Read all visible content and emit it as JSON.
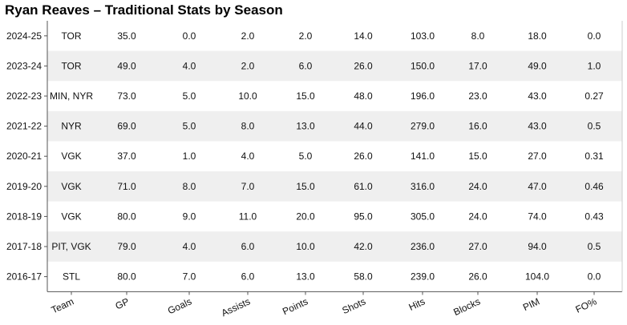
{
  "chart_data": {
    "type": "table",
    "title": "Ryan Reaves – Traditional Stats by Season",
    "columns": [
      "Team",
      "GP",
      "Goals",
      "Assists",
      "Points",
      "Shots",
      "Hits",
      "Blocks",
      "PIM",
      "FO%"
    ],
    "rows": [
      {
        "season": "2024-25",
        "values": [
          "TOR",
          "35.0",
          "0.0",
          "2.0",
          "2.0",
          "14.0",
          "103.0",
          "8.0",
          "18.0",
          "0.0"
        ]
      },
      {
        "season": "2023-24",
        "values": [
          "TOR",
          "49.0",
          "4.0",
          "2.0",
          "6.0",
          "26.0",
          "150.0",
          "17.0",
          "49.0",
          "1.0"
        ]
      },
      {
        "season": "2022-23",
        "values": [
          "MIN, NYR",
          "73.0",
          "5.0",
          "10.0",
          "15.0",
          "48.0",
          "196.0",
          "23.0",
          "43.0",
          "0.27"
        ]
      },
      {
        "season": "2021-22",
        "values": [
          "NYR",
          "69.0",
          "5.0",
          "8.0",
          "13.0",
          "44.0",
          "279.0",
          "16.0",
          "43.0",
          "0.5"
        ]
      },
      {
        "season": "2020-21",
        "values": [
          "VGK",
          "37.0",
          "1.0",
          "4.0",
          "5.0",
          "26.0",
          "141.0",
          "15.0",
          "27.0",
          "0.31"
        ]
      },
      {
        "season": "2019-20",
        "values": [
          "VGK",
          "71.0",
          "8.0",
          "7.0",
          "15.0",
          "61.0",
          "316.0",
          "24.0",
          "47.0",
          "0.46"
        ]
      },
      {
        "season": "2018-19",
        "values": [
          "VGK",
          "80.0",
          "9.0",
          "11.0",
          "20.0",
          "95.0",
          "305.0",
          "24.0",
          "74.0",
          "0.43"
        ]
      },
      {
        "season": "2017-18",
        "values": [
          "PIT, VGK",
          "79.0",
          "4.0",
          "6.0",
          "10.0",
          "42.0",
          "236.0",
          "27.0",
          "94.0",
          "0.5"
        ]
      },
      {
        "season": "2016-17",
        "values": [
          "STL",
          "80.0",
          "7.0",
          "6.0",
          "13.0",
          "58.0",
          "239.0",
          "26.0",
          "104.0",
          "0.0"
        ]
      }
    ],
    "stripe_color": "#efefef",
    "axis_color": "#555555"
  }
}
